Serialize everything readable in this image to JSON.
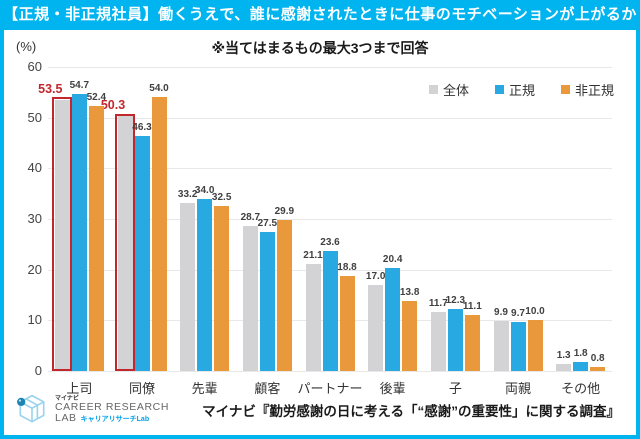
{
  "header": {
    "title": "【正規・非正規社員】働くうえで、誰に感謝されたときに仕事のモチベーションが上がるか",
    "note": "※当てはまるもの最大3つまで回答",
    "unit_label": "(%)"
  },
  "chart_data": {
    "type": "bar",
    "categories": [
      "上司",
      "同僚",
      "先輩",
      "顧客",
      "パートナー",
      "後輩",
      "子",
      "両親",
      "その他"
    ],
    "series": [
      {
        "name": "全体",
        "color": "#d3d3d5",
        "values": [
          53.5,
          50.3,
          33.2,
          28.7,
          21.1,
          17.0,
          11.7,
          9.9,
          1.3
        ]
      },
      {
        "name": "正規",
        "color": "#29a9e2",
        "values": [
          54.7,
          46.3,
          34.0,
          27.5,
          23.6,
          20.4,
          12.3,
          9.7,
          1.8
        ]
      },
      {
        "name": "非正規",
        "color": "#e9993c",
        "values": [
          52.4,
          54.0,
          32.5,
          29.9,
          18.8,
          13.8,
          11.1,
          10.0,
          0.8
        ]
      }
    ],
    "ylim": [
      0,
      60
    ],
    "yticks": [
      0,
      10,
      20,
      30,
      40,
      50,
      60
    ],
    "grid": true,
    "legend_position": "top-right",
    "value_labels": true,
    "highlight": {
      "color": "#c1272d",
      "bars": [
        {
          "series": 0,
          "category": 0
        },
        {
          "series": 0,
          "category": 1
        }
      ]
    }
  },
  "footer": {
    "logo": {
      "brand_small": "マイナビ",
      "line1": "CAREER RESEARCH",
      "line2": "LAB",
      "line2_sub": "キャリアリサーチLab"
    },
    "source": "マイナビ『勤労感謝の日に考える「“感謝”の重要性」に関する調査』"
  },
  "colors": {
    "accent": "#00b4ef",
    "series_total": "#d3d3d5",
    "series_regular": "#29a9e2",
    "series_nonregular": "#e9993c",
    "highlight": "#c1272d",
    "gridline": "#e8e8e8"
  }
}
